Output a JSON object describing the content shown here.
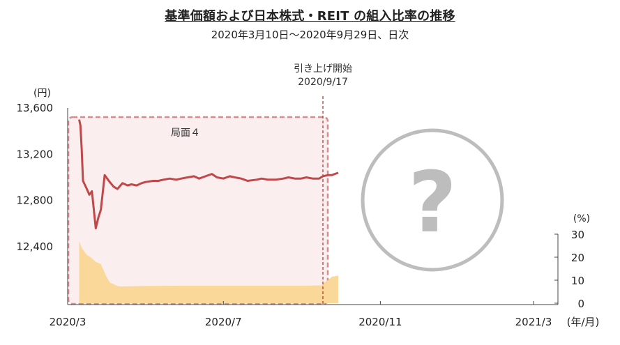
{
  "title": "基準価額および日本株式・REIT の組入比率の推移",
  "subtitle": "2020年3月10日〜2020年9月29日、日次",
  "colors": {
    "nav_line": "#c0484a",
    "ratio_area": "#fad89a",
    "phase_box_fill": "#fbeeee",
    "phase_box_stroke": "#d98b8b",
    "event_line": "#b03a3a",
    "question_circle": "#bdbdbd"
  },
  "chart_data": {
    "type": "line",
    "x_tick_labels": [
      "2020/3",
      "2020/7",
      "2020/11",
      "2021/3"
    ],
    "x_unit_label": "(年/月)",
    "left_axis": {
      "unit_label": "(円)",
      "ticks": [
        "13,600",
        "13,200",
        "12,800",
        "12,400"
      ],
      "ylim": [
        11900,
        13600
      ]
    },
    "right_axis": {
      "unit_label": "(%)",
      "ticks": [
        "30",
        "20",
        "10",
        "0"
      ],
      "ylim": [
        0,
        30
      ]
    },
    "phase_label": "局面４",
    "event": {
      "label_line1": "引き上げ開始",
      "label_line2": "2020/9/17",
      "date": "2020-09-17"
    },
    "placeholder_glyph": "?",
    "nav_series": {
      "x": [
        "2020-03-10",
        "2020-03-11",
        "2020-03-12",
        "2020-03-13",
        "2020-03-16",
        "2020-03-18",
        "2020-03-20",
        "2020-03-23",
        "2020-03-25",
        "2020-03-27",
        "2020-03-30",
        "2020-04-01",
        "2020-04-03",
        "2020-04-06",
        "2020-04-09",
        "2020-04-13",
        "2020-04-17",
        "2020-04-20",
        "2020-04-24",
        "2020-04-28",
        "2020-05-01",
        "2020-05-07",
        "2020-05-11",
        "2020-05-15",
        "2020-05-20",
        "2020-05-25",
        "2020-05-29",
        "2020-06-03",
        "2020-06-08",
        "2020-06-12",
        "2020-06-17",
        "2020-06-22",
        "2020-06-26",
        "2020-07-01",
        "2020-07-06",
        "2020-07-10",
        "2020-07-15",
        "2020-07-20",
        "2020-07-27",
        "2020-07-31",
        "2020-08-05",
        "2020-08-11",
        "2020-08-17",
        "2020-08-21",
        "2020-08-26",
        "2020-08-31",
        "2020-09-04",
        "2020-09-09",
        "2020-09-14",
        "2020-09-17",
        "2020-09-21",
        "2020-09-24",
        "2020-09-29"
      ],
      "y": [
        13500,
        13450,
        13250,
        12970,
        12900,
        12850,
        12880,
        12560,
        12650,
        12720,
        13020,
        12990,
        12960,
        12920,
        12900,
        12950,
        12930,
        12940,
        12930,
        12950,
        12960,
        12970,
        12970,
        12980,
        12990,
        12980,
        12990,
        13000,
        13010,
        12990,
        13010,
        13030,
        13000,
        12990,
        13010,
        13000,
        12990,
        12970,
        12980,
        12990,
        12980,
        12980,
        12990,
        13000,
        12990,
        12990,
        13000,
        12990,
        12990,
        13010,
        13020,
        13020,
        13040
      ]
    },
    "ratio_series": {
      "x": [
        "2020-03-10",
        "2020-03-12",
        "2020-03-16",
        "2020-03-19",
        "2020-03-23",
        "2020-03-27",
        "2020-03-31",
        "2020-04-03",
        "2020-04-07",
        "2020-04-10",
        "2020-04-15",
        "2020-05-01",
        "2020-06-01",
        "2020-07-01",
        "2020-08-01",
        "2020-09-01",
        "2020-09-16",
        "2020-09-17",
        "2020-09-21",
        "2020-09-24",
        "2020-09-29"
      ],
      "y": [
        27,
        24,
        21,
        20,
        18,
        17,
        12,
        9,
        8,
        7.3,
        7.3,
        7.5,
        7.6,
        7.6,
        7.6,
        7.6,
        7.7,
        8.5,
        10,
        11.5,
        12
      ]
    }
  }
}
